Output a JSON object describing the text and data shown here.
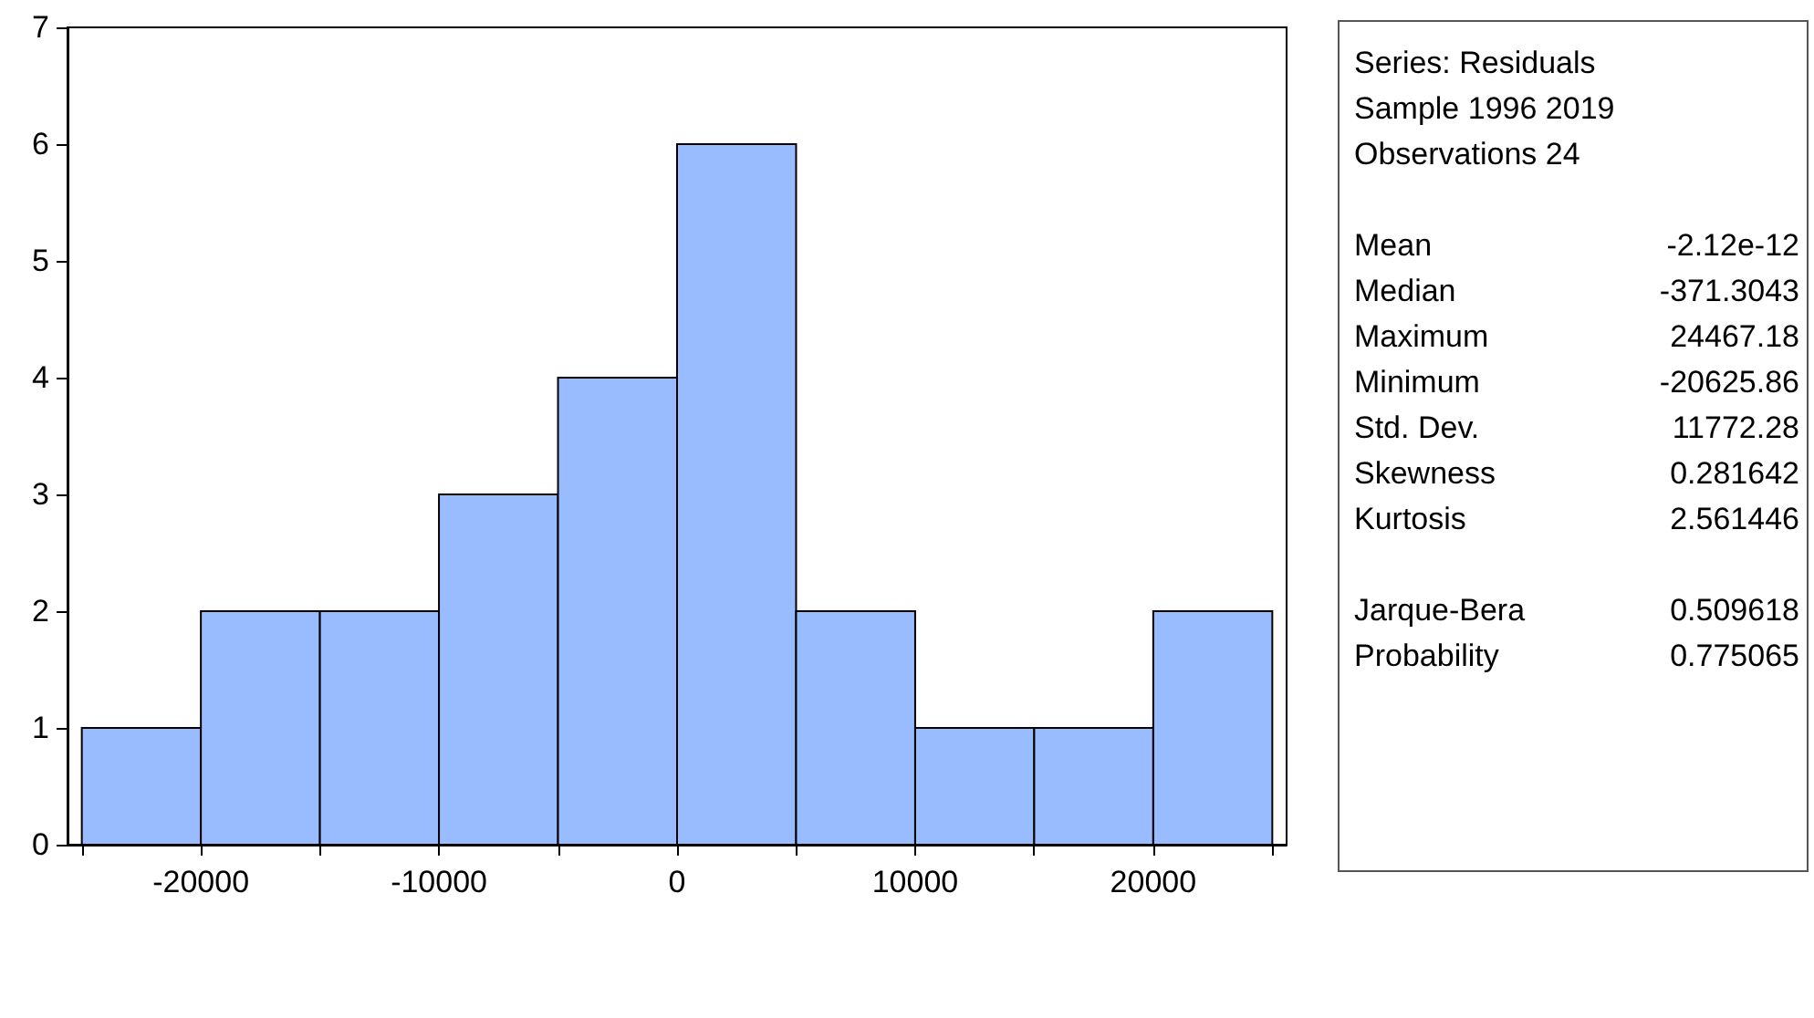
{
  "chart_data": {
    "type": "histogram",
    "bins": [
      -25000,
      -20000,
      -15000,
      -10000,
      -5000,
      0,
      5000,
      10000,
      15000,
      20000,
      25000
    ],
    "values": [
      1,
      2,
      2,
      3,
      4,
      6,
      2,
      1,
      1,
      2
    ],
    "color": "#99bbff",
    "xlim": [
      -25600,
      25600
    ],
    "xticks": [
      {
        "value": -25000,
        "label": null
      },
      -20000,
      {
        "value": -15000,
        "label": null
      },
      -10000,
      {
        "value": -5000,
        "label": null
      },
      0,
      {
        "value": 5000,
        "label": null
      },
      10000,
      {
        "value": 15000,
        "label": null
      },
      20000,
      {
        "value": 25000,
        "label": null
      }
    ],
    "ylim": [
      0,
      7
    ],
    "yticks": [
      0,
      1,
      2,
      3,
      4,
      5,
      6,
      7
    ],
    "grid": false,
    "annotations": [
      "Series: Residuals",
      "Sample 1996 2019",
      "Observations 24",
      "Mean -2.12e-12",
      "Median -371.3043",
      "Maximum 24467.18",
      "Minimum -20625.86",
      "Std. Dev. 11772.28",
      "Skewness 0.281642",
      "Kurtosis 2.561446",
      "Jarque-Bera 0.509618",
      "Probability 0.775065"
    ]
  }
}
